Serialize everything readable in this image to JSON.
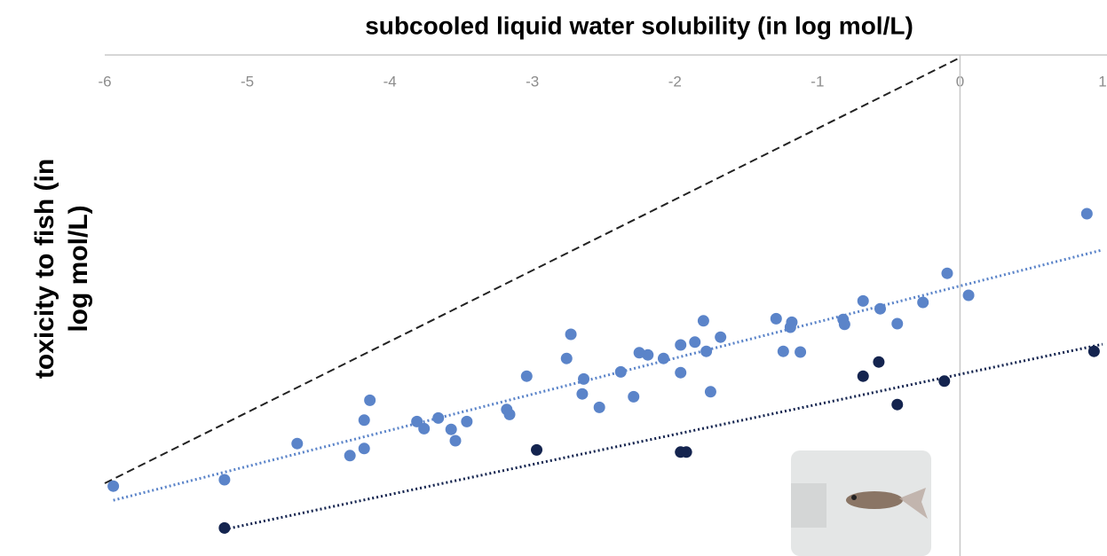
{
  "chart_data": {
    "type": "scatter",
    "title": "subcooled liquid water solubility (in log mol/L)",
    "y_label": "toxicity to fish (in log mol/L)",
    "xlim": [
      -6,
      1
    ],
    "xticks": [
      -6,
      -5,
      -4,
      -3,
      -2,
      -1,
      0,
      1
    ],
    "ylim": [
      -7,
      0
    ],
    "grid": false,
    "series": [
      {
        "color": "#5b84c9",
        "marker": "circle",
        "x": [
          -5.94,
          -5.16,
          -4.65,
          -4.28,
          -4.18,
          -4.18,
          -4.14,
          -3.81,
          -3.76,
          -3.66,
          -3.57,
          -3.54,
          -3.46,
          -3.18,
          -3.16,
          -3.04,
          -2.76,
          -2.73,
          -2.64,
          -2.65,
          -2.53,
          -2.38,
          -2.29,
          -2.25,
          -2.19,
          -2.08,
          -1.96,
          -1.96,
          -1.86,
          -1.8,
          -1.78,
          -1.75,
          -1.68,
          -1.29,
          -1.24,
          -1.19,
          -1.18,
          -1.12,
          -0.82,
          -0.81,
          -0.68,
          -0.56,
          -0.44,
          -0.26,
          -0.09,
          0.06,
          0.89
        ],
        "values": [
          -6.04,
          -5.95,
          -5.44,
          -5.61,
          -5.51,
          -5.11,
          -4.83,
          -5.13,
          -5.23,
          -5.08,
          -5.24,
          -5.4,
          -5.13,
          -4.96,
          -5.03,
          -4.49,
          -4.24,
          -3.9,
          -4.53,
          -4.74,
          -4.93,
          -4.43,
          -4.78,
          -4.16,
          -4.19,
          -4.24,
          -4.05,
          -4.44,
          -4.01,
          -3.71,
          -4.14,
          -4.71,
          -3.94,
          -3.68,
          -4.14,
          -3.8,
          -3.73,
          -4.15,
          -3.69,
          -3.76,
          -3.43,
          -3.54,
          -3.75,
          -3.45,
          -3.04,
          -3.35,
          -2.2
        ],
        "trend": {
          "x": [
            -5.94,
            1
          ],
          "values": [
            -6.24,
            -2.71
          ]
        }
      },
      {
        "color": "#14244f",
        "marker": "circle",
        "x": [
          -5.16,
          -2.97,
          -1.96,
          -1.92,
          -0.68,
          -0.57,
          -0.44,
          -0.11,
          0.94
        ],
        "values": [
          -6.63,
          -5.53,
          -5.56,
          -5.56,
          -4.49,
          -4.29,
          -4.89,
          -4.56,
          -4.14
        ],
        "trend": {
          "x": [
            -5.16,
            1
          ],
          "values": [
            -6.65,
            -4.04
          ]
        }
      }
    ],
    "reference_line": {
      "x": [
        -6,
        0
      ],
      "values": [
        -6,
        0
      ]
    }
  }
}
